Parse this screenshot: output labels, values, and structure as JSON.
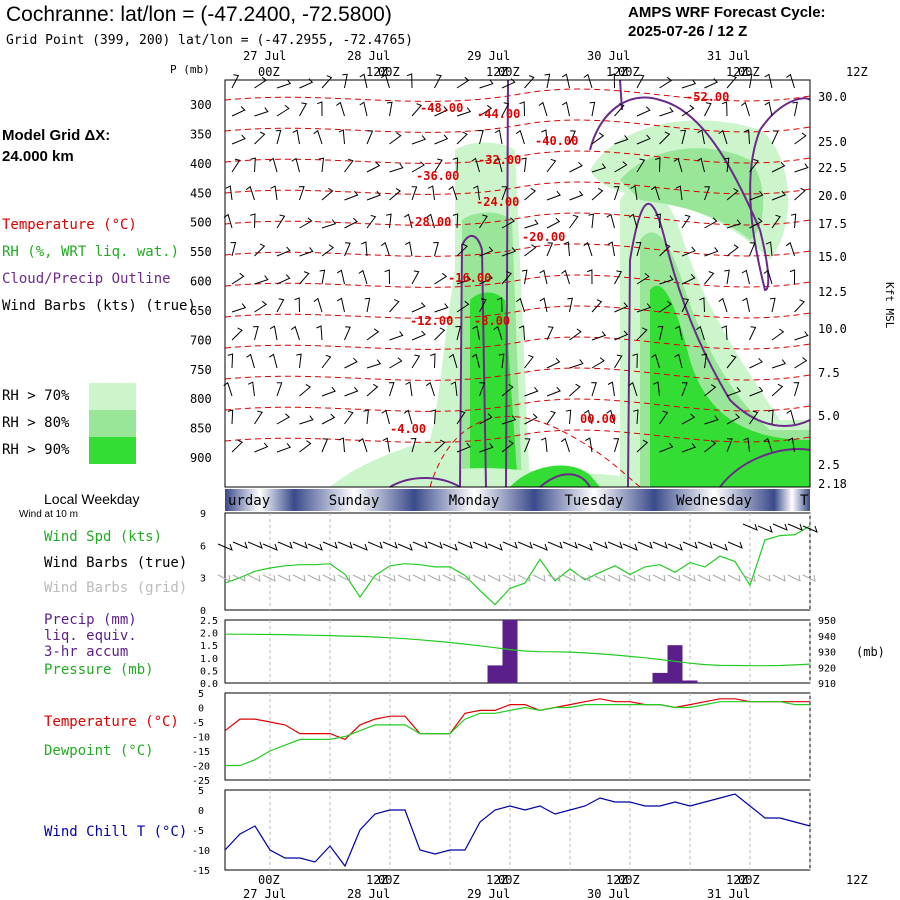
{
  "header": {
    "title": "Cochranne:  lat/lon = (-47.2400, -72.5800)",
    "grid_point": "Grid Point (399, 200) lat/lon = (-47.2955, -72.4765)",
    "forecast_label": "AMPS WRF Forecast Cycle:",
    "cycle": "2025-07-26 / 12  Z"
  },
  "model": {
    "line1": "Model Grid ΔX:",
    "line2": " 24.000 km"
  },
  "legend": {
    "temperature": "Temperature (°C)",
    "rh": "RH (%, WRT liq. wat.)",
    "cloud": "Cloud/Precip Outline",
    "wind": "Wind Barbs (kts) (true)",
    "rh70": "RH > 70%",
    "rh80": "RH > 80%",
    "rh90": "RH > 90%",
    "rh_colors": [
      "#ccf5cc",
      "#99e699",
      "#33dd33"
    ]
  },
  "colors": {
    "temperature": "#dd0000",
    "rh_green": "#22cc22",
    "cloud": "#6a2a8a",
    "precip": "#5a1f8a",
    "windchill": "#0000aa",
    "grid_wind": "#aaaaaa",
    "weekday_band": "#3a4a8a"
  },
  "time_axis": {
    "tick_labels": [
      "00Z",
      "12Z",
      "00Z",
      "12Z",
      "00Z",
      "12Z",
      "00Z",
      "12Z",
      "00Z",
      "12Z"
    ],
    "date_labels": [
      "27 Jul",
      "28 Jul",
      "29 Jul",
      "30 Jul",
      "31 Jul"
    ],
    "weekdays": [
      "urday",
      "Sunday",
      "Monday",
      "Tuesday",
      "Wednesday",
      "T"
    ]
  },
  "chart_data": [
    {
      "type": "heatmap",
      "ylabel": "P (mb)",
      "y2label": "Kft MSL",
      "pressure_ticks": [
        300,
        350,
        400,
        450,
        500,
        550,
        600,
        650,
        700,
        750,
        800,
        850,
        900
      ],
      "kft_ticks": [
        "30.0",
        "25.0",
        "22.5",
        "20.0",
        "17.5",
        "15.0",
        "12.5",
        "10.0",
        "7.5",
        "5.0",
        "2.5",
        "2.18"
      ],
      "temperature_contour_labels": [
        "-48.00",
        "-44.00",
        "-40.00",
        "-52.00",
        "-36.00",
        "-32.00",
        "-28.00",
        "-24.00",
        "-20.00",
        "-16.00",
        "-12.00",
        "-8.00",
        "-4.00",
        "00.00"
      ]
    },
    {
      "type": "line",
      "title": "Local Weekday",
      "subtitle": "Wind at 10 m",
      "legend": [
        "Wind Spd (kts)",
        "Wind Barbs (true)",
        "Wind Barbs (grid)"
      ],
      "y_ticks": [
        0,
        3,
        6,
        9
      ],
      "ylim": [
        0,
        9
      ],
      "series": [
        {
          "name": "Wind Spd (kts)",
          "values": [
            2.5,
            3.0,
            3.6,
            3.9,
            4.1,
            4.2,
            4.2,
            4.3,
            3.3,
            1.2,
            3.2,
            4.1,
            4.3,
            4.2,
            4.0,
            4.0,
            3.2,
            1.8,
            0.5,
            2.0,
            2.5,
            4.7,
            2.7,
            3.8,
            2.8,
            3.5,
            4.1,
            3.3,
            4.0,
            4.2,
            3.5,
            4.4,
            4.0,
            5.0,
            4.5,
            2.3,
            6.5,
            6.9,
            7.0,
            7.8
          ]
        }
      ]
    },
    {
      "type": "bar",
      "legend": [
        "Precip (mm)",
        "liq. equiv.",
        "3-hr accum",
        "Pressure (mb)"
      ],
      "y_ticks": [
        "0.0",
        "0.5",
        "1.0",
        "1.5",
        "2.0",
        "2.5"
      ],
      "ylim": [
        0,
        2.5
      ],
      "y2_ticks": [
        910,
        920,
        930,
        940,
        950
      ],
      "y2_label": "(mb)",
      "y2lim": [
        910,
        950
      ],
      "precip": [
        0,
        0,
        0,
        0,
        0,
        0,
        0,
        0,
        0,
        0,
        0,
        0,
        0,
        0,
        0,
        0,
        0,
        0,
        0.7,
        2.5,
        0,
        0,
        0,
        0,
        0,
        0,
        0,
        0,
        0,
        0.4,
        1.5,
        0.1,
        0,
        0,
        0,
        0,
        0,
        0,
        0,
        0
      ],
      "pressure": [
        941.0,
        941.0,
        940.9,
        940.8,
        940.7,
        940.5,
        940.3,
        940.1,
        939.8,
        939.6,
        939.2,
        938.7,
        938.1,
        937.4,
        936.6,
        935.7,
        934.7,
        933.6,
        932.4,
        931.2,
        930.3,
        929.9,
        929.8,
        929.6,
        929.1,
        928.5,
        927.8,
        926.9,
        926.0,
        924.9,
        923.8,
        922.6,
        921.7,
        921.2,
        921.1,
        921.0,
        921.0,
        921.1,
        921.5,
        922.0
      ]
    },
    {
      "type": "line",
      "legend": [
        "Temperature (°C)",
        "Dewpoint (°C)"
      ],
      "y_ticks": [
        5,
        0,
        -5,
        -10,
        -15,
        -20,
        -25
      ],
      "ylim": [
        -25,
        5
      ],
      "series": [
        {
          "name": "Temperature (°C)",
          "values": [
            -8,
            -4,
            -4,
            -5,
            -6,
            -9,
            -9,
            -9,
            -11,
            -6,
            -4,
            -3,
            -3,
            -9,
            -9,
            -9,
            -2,
            -1,
            -1,
            1,
            1,
            -1,
            0,
            1,
            2,
            3,
            2,
            2,
            1,
            1,
            0,
            1,
            2,
            3,
            3,
            2,
            2,
            2,
            2,
            2
          ]
        },
        {
          "name": "Dewpoint (°C)",
          "values": [
            -20,
            -20,
            -18,
            -15,
            -13,
            -11,
            -11,
            -11,
            -10,
            -8,
            -6,
            -6,
            -6,
            -9,
            -9,
            -9,
            -4,
            -2,
            -2,
            -1,
            0,
            -1,
            0,
            0,
            1,
            1,
            1,
            1,
            1,
            1,
            0,
            0,
            1,
            2,
            2,
            2,
            2,
            2,
            1,
            1
          ]
        }
      ]
    },
    {
      "type": "line",
      "legend": [
        "Wind Chill T (°C)"
      ],
      "y_ticks": [
        5,
        0,
        -5,
        -10,
        -15
      ],
      "ylim": [
        -15,
        5
      ],
      "series": [
        {
          "name": "Wind Chill T (°C)",
          "values": [
            -10,
            -6,
            -4,
            -10,
            -12,
            -12,
            -13,
            -9,
            -14,
            -5,
            -1,
            0,
            0,
            -10,
            -11,
            -10,
            -10,
            -3,
            0,
            1,
            0,
            1,
            -1,
            0,
            1,
            3,
            2,
            2,
            1,
            1,
            2,
            1,
            2,
            3,
            4,
            1,
            -2,
            -2,
            -3,
            -4
          ]
        }
      ]
    }
  ]
}
